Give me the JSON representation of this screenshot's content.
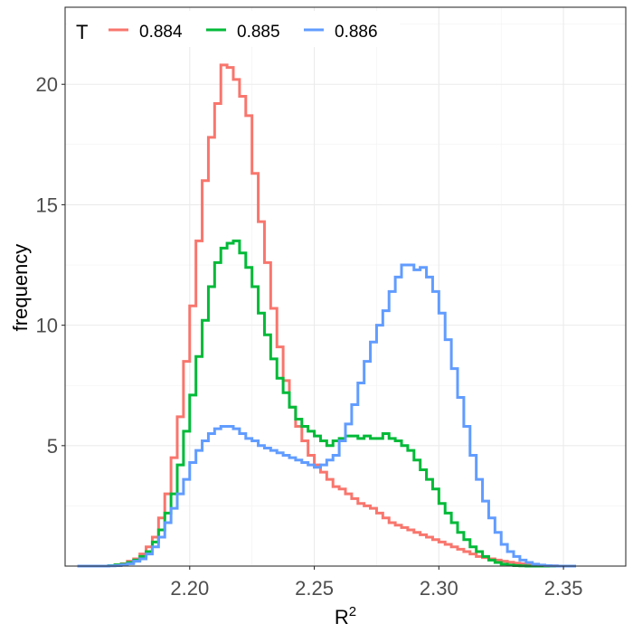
{
  "chart_data": {
    "type": "line",
    "step": true,
    "xlabel": "R",
    "xlabel_sup": "2",
    "ylabel": "frequency",
    "xlim": [
      2.15,
      2.375
    ],
    "ylim": [
      0,
      23.2
    ],
    "x_ticks": [
      2.2,
      2.25,
      2.3,
      2.35
    ],
    "x_tick_labels": [
      "2.20",
      "2.25",
      "2.30",
      "2.35"
    ],
    "y_ticks": [
      5,
      10,
      15,
      20
    ],
    "y_tick_labels": [
      "5",
      "10",
      "15",
      "20"
    ],
    "grid": true,
    "legend": {
      "title": "T",
      "position": "top-left"
    },
    "bin_width": 0.0025,
    "x_start": 2.155,
    "series": [
      {
        "name": "0.884",
        "color": "#F8766D",
        "values": [
          0,
          0,
          0,
          0,
          0,
          0.02,
          0.05,
          0.1,
          0.2,
          0.3,
          0.5,
          0.8,
          1.2,
          2.0,
          3.0,
          4.5,
          6.2,
          8.5,
          10.8,
          13.5,
          16.0,
          17.8,
          19.2,
          20.8,
          20.7,
          20.2,
          19.5,
          18.7,
          16.3,
          14.3,
          12.6,
          10.7,
          9.1,
          7.7,
          6.6,
          5.8,
          5.2,
          4.6,
          4.2,
          3.9,
          3.6,
          3.3,
          3.2,
          3.0,
          2.8,
          2.6,
          2.5,
          2.4,
          2.2,
          2.0,
          1.8,
          1.7,
          1.6,
          1.5,
          1.4,
          1.3,
          1.2,
          1.1,
          1.0,
          0.9,
          0.8,
          0.7,
          0.6,
          0.5,
          0.4,
          0.35,
          0.3,
          0.25,
          0.2,
          0.16,
          0.12,
          0.1,
          0.07,
          0.05,
          0.03,
          0.02,
          0.01,
          0,
          0,
          0
        ]
      },
      {
        "name": "0.885",
        "color": "#00BA38",
        "values": [
          0,
          0,
          0,
          0,
          0,
          0.02,
          0.05,
          0.08,
          0.15,
          0.25,
          0.4,
          0.6,
          1.0,
          1.5,
          2.2,
          3.0,
          4.2,
          5.6,
          7.1,
          8.7,
          10.2,
          11.6,
          12.6,
          13.2,
          13.4,
          13.5,
          13.0,
          12.4,
          11.6,
          10.5,
          9.6,
          8.6,
          7.8,
          7.2,
          6.6,
          6.1,
          5.8,
          5.6,
          5.4,
          5.2,
          5.0,
          5.2,
          5.3,
          5.4,
          5.4,
          5.3,
          5.4,
          5.3,
          5.3,
          5.5,
          5.3,
          5.2,
          5.0,
          4.8,
          4.4,
          4.0,
          3.6,
          3.2,
          2.6,
          2.2,
          1.8,
          1.4,
          1.1,
          0.8,
          0.6,
          0.4,
          0.25,
          0.15,
          0.08,
          0.04,
          0.02,
          0.01,
          0,
          0,
          0,
          0,
          0,
          0,
          0,
          0
        ]
      },
      {
        "name": "0.886",
        "color": "#619CFF",
        "values": [
          0,
          0,
          0,
          0,
          0,
          0.01,
          0.02,
          0.05,
          0.1,
          0.2,
          0.3,
          0.5,
          0.8,
          1.2,
          1.8,
          2.4,
          3.0,
          3.6,
          4.3,
          4.8,
          5.2,
          5.5,
          5.7,
          5.8,
          5.8,
          5.7,
          5.5,
          5.3,
          5.2,
          5.0,
          4.9,
          4.8,
          4.7,
          4.6,
          4.5,
          4.4,
          4.3,
          4.2,
          4.1,
          4.2,
          4.4,
          4.6,
          5.2,
          5.9,
          6.7,
          7.6,
          8.5,
          9.3,
          10.0,
          10.6,
          11.4,
          12.0,
          12.5,
          12.5,
          12.3,
          12.4,
          12.0,
          11.4,
          10.5,
          9.4,
          8.2,
          7.0,
          5.8,
          4.6,
          3.6,
          2.7,
          2.0,
          1.4,
          0.9,
          0.6,
          0.4,
          0.25,
          0.15,
          0.08,
          0.04,
          0.02,
          0.01,
          0,
          0,
          0
        ]
      }
    ]
  }
}
